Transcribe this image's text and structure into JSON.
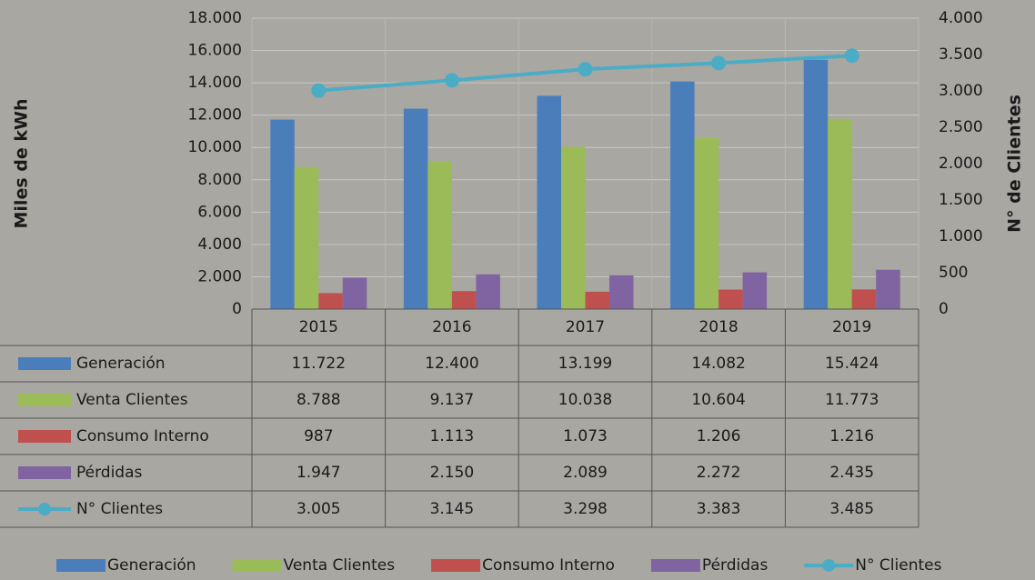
{
  "chart_data": {
    "type": "bar",
    "ylabel": "Miles de kWh",
    "y2label": "N° de Clientes",
    "categories": [
      "2015",
      "2016",
      "2017",
      "2018",
      "2019"
    ],
    "series": [
      {
        "name": "Generación",
        "color": "#4a7ebb",
        "values": [
          11722,
          12400,
          13199,
          14082,
          15424
        ],
        "value_labels": [
          "11.722",
          "12.400",
          "13.199",
          "14.082",
          "15.424"
        ]
      },
      {
        "name": "Venta Clientes",
        "color": "#9bbb59",
        "values": [
          8788,
          9137,
          10038,
          10604,
          11773
        ],
        "value_labels": [
          "8.788",
          "9.137",
          "10.038",
          "10.604",
          "11.773"
        ]
      },
      {
        "name": "Consumo Interno",
        "color": "#c0504d",
        "values": [
          987,
          1113,
          1073,
          1206,
          1216
        ],
        "value_labels": [
          "987",
          "1.113",
          "1.073",
          "1.206",
          "1.216"
        ]
      },
      {
        "name": "Pérdidas",
        "color": "#8064a2",
        "values": [
          1947,
          2150,
          2089,
          2272,
          2435
        ],
        "value_labels": [
          "1.947",
          "2.150",
          "2.089",
          "2.272",
          "2.435"
        ]
      },
      {
        "name": "N° Clientes",
        "color": "#4bacc6",
        "type": "line",
        "axis": "y2",
        "values": [
          3005,
          3145,
          3298,
          3383,
          3485
        ],
        "value_labels": [
          "3.005",
          "3.145",
          "3.298",
          "3.383",
          "3.485"
        ]
      }
    ],
    "ylim": [
      0,
      18000
    ],
    "yticks": [
      0,
      {
        "value": 2000,
        "label": "2.000"
      },
      {
        "value": 4000,
        "label": "4.000"
      },
      {
        "value": 6000,
        "label": "6.000"
      },
      {
        "value": 8000,
        "label": "8.000"
      },
      {
        "value": 10000,
        "label": "10.000"
      },
      {
        "value": 12000,
        "label": "12.000"
      },
      {
        "value": 14000,
        "label": "14.000"
      },
      {
        "value": 16000,
        "label": "16.000"
      },
      {
        "value": 18000,
        "label": "18.000"
      }
    ],
    "y2lim": [
      0,
      4000
    ],
    "y2ticks": [
      0,
      500,
      {
        "value": 1000,
        "label": "1.000"
      },
      {
        "value": 1500,
        "label": "1.500"
      },
      {
        "value": 2000,
        "label": "2.000"
      },
      {
        "value": 2500,
        "label": "2.500"
      },
      {
        "value": 3000,
        "label": "3.000"
      },
      {
        "value": 3500,
        "label": "3.500"
      },
      {
        "value": 4000,
        "label": "4.000"
      }
    ],
    "grid": true,
    "legend": "bottom"
  }
}
